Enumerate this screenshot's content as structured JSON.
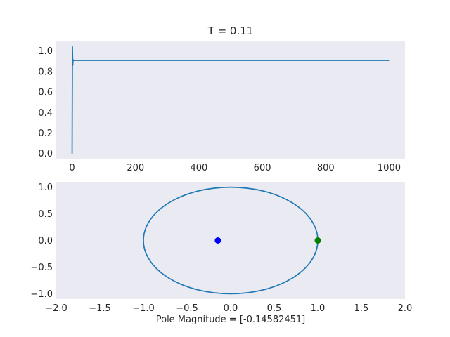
{
  "chart_data": [
    {
      "type": "line",
      "title": "T = 0.11",
      "xlabel": "",
      "ylabel": "",
      "xlim": [
        -50,
        1050
      ],
      "ylim": [
        -0.05,
        1.1
      ],
      "xticks": [
        0,
        200,
        400,
        600,
        800,
        1000
      ],
      "yticks": [
        0.0,
        0.2,
        0.4,
        0.6,
        0.8,
        1.0
      ],
      "grid": false,
      "series": [
        {
          "color": "#1f77b4",
          "x": [
            0,
            1,
            2,
            3,
            4,
            5,
            6,
            1000
          ],
          "y": [
            0.0,
            1.04,
            0.86,
            0.915,
            0.906,
            0.909,
            0.908,
            0.908
          ]
        }
      ]
    },
    {
      "type": "scatter",
      "title": "",
      "xlabel": "Pole Magnitude = [-0.14582451]",
      "ylabel": "",
      "xlim": [
        -2.0,
        2.0
      ],
      "ylim": [
        -1.1,
        1.1
      ],
      "xticks": [
        -2.0,
        -1.5,
        -1.0,
        -0.5,
        0.0,
        0.5,
        1.0,
        1.5,
        2.0
      ],
      "yticks": [
        -1.0,
        -0.5,
        0.0,
        0.5,
        1.0
      ],
      "grid": false,
      "unit_circle": {
        "color": "#1f77b4",
        "radius": 1
      },
      "points": [
        {
          "x": -0.14582451,
          "y": 0.0,
          "color": "#0000ff"
        },
        {
          "x": 1.0,
          "y": 0.0,
          "color": "#008000"
        }
      ]
    }
  ]
}
